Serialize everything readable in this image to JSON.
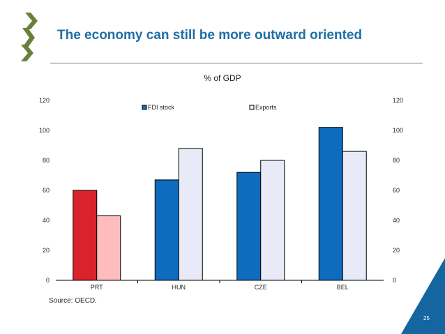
{
  "slide": {
    "title": "The economy can still be more outward oriented",
    "source": "Source: OECD.",
    "page_number": "25"
  },
  "colors": {
    "title": "#1f6fa6",
    "logo": "#6b7f3d",
    "corner": "#1565a0"
  },
  "chart_data": {
    "type": "bar",
    "title": "% of GDP",
    "categories": [
      "PRT",
      "HUN",
      "CZE",
      "BEL"
    ],
    "series": [
      {
        "name": "FDI stock",
        "values": [
          60,
          67,
          72,
          102
        ],
        "colors": [
          "#d9222b",
          "#0f6bbd",
          "#0f6bbd",
          "#0f6bbd"
        ],
        "legend_color": "#0f6bbd"
      },
      {
        "name": "Exports",
        "values": [
          43,
          88,
          80,
          86
        ],
        "colors": [
          "#ffbcbc",
          "#e8ebf7",
          "#e8ebf7",
          "#e8ebf7"
        ],
        "legend_color": "#e8ebf7"
      }
    ],
    "ylim": [
      0,
      120
    ],
    "yticks": [
      0,
      20,
      40,
      60,
      80,
      100,
      120
    ],
    "secondary_yticks": [
      0,
      20,
      40,
      60,
      80,
      100,
      120
    ],
    "grid": false,
    "legend_position": "top-center"
  }
}
